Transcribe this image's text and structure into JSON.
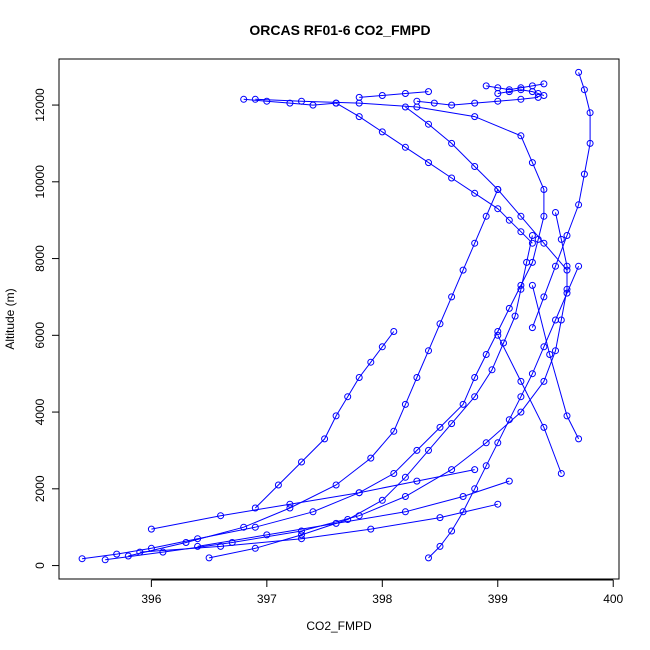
{
  "chart_data": {
    "type": "scatter",
    "title": "ORCAS RF01-6 CO2_FMPD",
    "xlabel": "CO2_FMPD",
    "ylabel": "Altitude (m)",
    "xlim": [
      395.2,
      400.05
    ],
    "ylim": [
      -350,
      13200
    ],
    "xticks": [
      396,
      397,
      398,
      399,
      400
    ],
    "yticks": [
      0,
      2000,
      4000,
      6000,
      8000,
      10000,
      12000
    ],
    "xtick_labels": [
      "396",
      "397",
      "398",
      "399",
      "400"
    ],
    "ytick_labels": [
      "0",
      "2000",
      "4000",
      "6000",
      "8000",
      "10000",
      "12000"
    ],
    "grid": false,
    "style": "points connected by lines, open circle markers",
    "color": "#0000ff",
    "series": [
      {
        "x": [
          395.4,
          395.7,
          396.0,
          396.4,
          396.9,
          397.4,
          397.8,
          398.1,
          398.3,
          398.5,
          398.7,
          398.8,
          398.9,
          399.0,
          399.1,
          399.2,
          399.3,
          399.35,
          399.4,
          399.4,
          399.3,
          399.2,
          398.8,
          398.3,
          397.8,
          397.3,
          396.9
        ],
        "y": [
          180,
          300,
          450,
          700,
          1000,
          1400,
          1900,
          2400,
          3000,
          3600,
          4200,
          4900,
          5500,
          6100,
          6700,
          7300,
          7900,
          8500,
          9100,
          9800,
          10500,
          11200,
          11700,
          11950,
          12050,
          12100,
          12150
        ]
      },
      {
        "x": [
          395.6,
          396.1,
          396.7,
          397.3,
          397.8,
          398.2,
          398.6,
          398.9,
          399.2,
          399.4,
          399.5,
          399.55,
          399.6,
          399.6,
          399.55,
          399.5
        ],
        "y": [
          150,
          350,
          600,
          900,
          1300,
          1800,
          2500,
          3200,
          4000,
          4800,
          5600,
          6400,
          7200,
          7800,
          8500,
          9200
        ]
      },
      {
        "x": [
          399.7,
          399.75,
          399.8,
          399.8,
          399.75,
          399.7,
          399.6,
          399.5,
          399.4,
          399.3
        ],
        "y": [
          12850,
          12400,
          11800,
          11000,
          10200,
          9400,
          8600,
          7800,
          7000,
          6200
        ]
      },
      {
        "x": [
          395.8,
          396.3,
          396.8,
          397.2,
          397.6,
          397.9,
          398.1,
          398.2,
          398.3,
          398.4,
          398.5,
          398.6,
          398.7,
          398.8,
          398.9,
          399.0
        ],
        "y": [
          250,
          600,
          1000,
          1500,
          2100,
          2800,
          3500,
          4200,
          4900,
          5600,
          6300,
          7000,
          7700,
          8400,
          9100,
          9800
        ]
      },
      {
        "x": [
          396.5,
          396.9,
          397.3,
          397.7,
          398.0,
          398.2,
          398.4,
          398.6,
          398.8,
          398.95,
          399.05,
          399.15,
          399.2,
          399.25,
          399.3
        ],
        "y": [
          200,
          450,
          800,
          1200,
          1700,
          2300,
          3000,
          3700,
          4400,
          5100,
          5800,
          6500,
          7200,
          7900,
          8600
        ]
      },
      {
        "x": [
          398.4,
          398.5,
          398.6,
          398.7,
          398.8,
          398.9,
          399.0,
          399.1,
          399.2,
          399.3,
          399.4,
          399.5,
          399.6,
          399.7
        ],
        "y": [
          200,
          500,
          900,
          1400,
          2000,
          2600,
          3200,
          3800,
          4400,
          5000,
          5700,
          6400,
          7100,
          7800
        ]
      },
      {
        "x": [
          397.6,
          397.8,
          398.0,
          398.2,
          398.4,
          398.6,
          398.8,
          399.0,
          399.1,
          399.2,
          399.3
        ],
        "y": [
          12050,
          11700,
          11300,
          10900,
          10500,
          10100,
          9700,
          9300,
          9000,
          8700,
          8400
        ]
      },
      {
        "x": [
          396.9,
          397.1,
          397.3,
          397.5,
          397.6,
          397.7,
          397.8,
          397.9,
          398.0,
          398.1
        ],
        "y": [
          1500,
          2100,
          2700,
          3300,
          3900,
          4400,
          4900,
          5300,
          5700,
          6100
        ]
      },
      {
        "x": [
          398.2,
          398.4,
          398.6,
          398.8,
          399.0,
          399.2,
          399.4,
          399.6
        ],
        "y": [
          11950,
          11500,
          11000,
          10400,
          9800,
          9100,
          8400,
          7700
        ]
      },
      {
        "x": [
          398.9,
          399.0,
          399.1,
          399.2,
          399.3,
          399.4
        ],
        "y": [
          12500,
          12450,
          12400,
          12450,
          12500,
          12550
        ]
      },
      {
        "x": [
          398.3,
          398.45,
          398.6,
          398.8,
          399.0,
          399.2,
          399.35
        ],
        "y": [
          12100,
          12050,
          12000,
          12050,
          12100,
          12150,
          12200
        ]
      },
      {
        "x": [
          396.8,
          397.0,
          397.2,
          397.4,
          397.6
        ],
        "y": [
          12150,
          12100,
          12050,
          12000,
          12050
        ]
      },
      {
        "x": [
          397.8,
          398.0,
          398.2,
          398.4
        ],
        "y": [
          12200,
          12250,
          12300,
          12350
        ]
      },
      {
        "x": [
          399.0,
          399.1,
          399.2,
          399.3,
          399.35,
          399.4
        ],
        "y": [
          12300,
          12350,
          12400,
          12350,
          12300,
          12250
        ]
      },
      {
        "x": [
          399.3,
          399.45,
          399.6,
          399.7
        ],
        "y": [
          7300,
          5500,
          3900,
          3300
        ]
      },
      {
        "x": [
          399.0,
          399.2,
          399.4,
          399.55
        ],
        "y": [
          6000,
          4800,
          3600,
          2400
        ]
      },
      {
        "x": [
          396.0,
          396.6,
          397.2,
          397.8,
          398.3,
          398.8
        ],
        "y": [
          950,
          1300,
          1600,
          1900,
          2200,
          2500
        ]
      },
      {
        "x": [
          396.4,
          397.0,
          397.6,
          398.2,
          398.7,
          399.1
        ],
        "y": [
          500,
          800,
          1100,
          1400,
          1800,
          2200
        ]
      },
      {
        "x": [
          395.9,
          396.6,
          397.3,
          397.9,
          398.5,
          399.0
        ],
        "y": [
          350,
          500,
          700,
          950,
          1250,
          1600
        ]
      }
    ]
  }
}
